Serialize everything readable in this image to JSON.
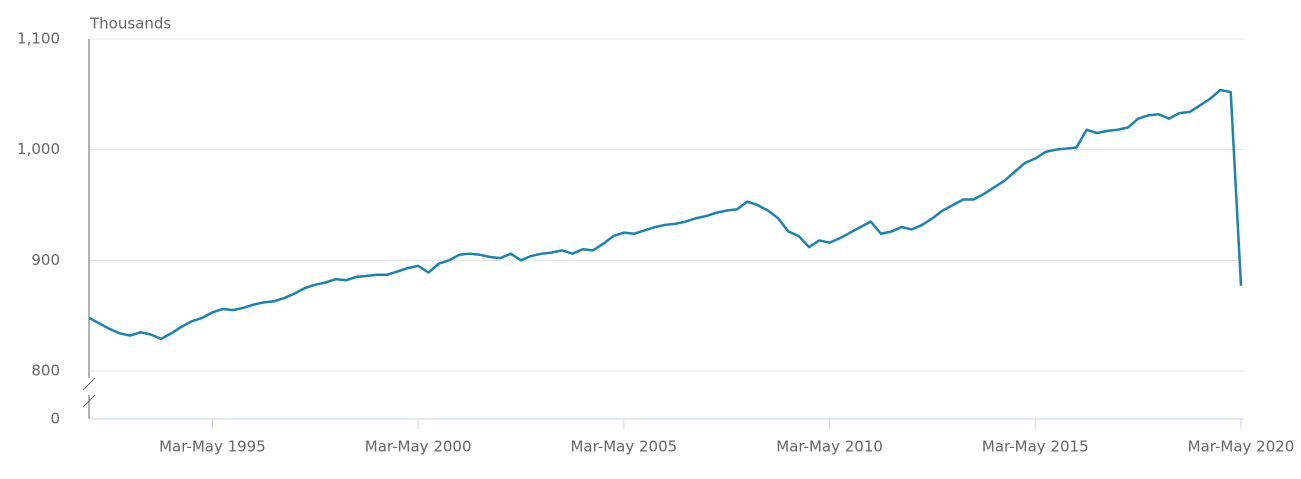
{
  "chart_data": {
    "type": "line",
    "y_unit_label": "Thousands",
    "categories": [
      null,
      null,
      null,
      null,
      null,
      null,
      null,
      null,
      null,
      null,
      null,
      null,
      "Mar-May 1995",
      null,
      null,
      null,
      null,
      null,
      null,
      null,
      null,
      null,
      null,
      null,
      null,
      null,
      null,
      null,
      null,
      null,
      null,
      null,
      "Mar-May 2000",
      null,
      null,
      null,
      null,
      null,
      null,
      null,
      null,
      null,
      null,
      null,
      null,
      null,
      null,
      null,
      null,
      null,
      null,
      null,
      "Mar-May 2005",
      null,
      null,
      null,
      null,
      null,
      null,
      null,
      null,
      null,
      null,
      null,
      null,
      null,
      null,
      null,
      null,
      null,
      null,
      null,
      "Mar-May 2010",
      null,
      null,
      null,
      null,
      null,
      null,
      null,
      null,
      null,
      null,
      null,
      null,
      null,
      null,
      null,
      null,
      null,
      null,
      null,
      "Mar-May 2015",
      null,
      null,
      null,
      null,
      null,
      null,
      null,
      null,
      null,
      null,
      null,
      null,
      null,
      null,
      null,
      null,
      null,
      null,
      null,
      "Mar-May 2020"
    ],
    "values": [
      848,
      843,
      838,
      834,
      832,
      835,
      833,
      829,
      834,
      840,
      845,
      848,
      853,
      856,
      855,
      857,
      860,
      862,
      863,
      866,
      870,
      875,
      878,
      880,
      883,
      882,
      885,
      886,
      887,
      887,
      890,
      893,
      895,
      889,
      897,
      900,
      905,
      906,
      905,
      903,
      902,
      906,
      900,
      904,
      906,
      907,
      909,
      906,
      910,
      909,
      915,
      922,
      925,
      924,
      927,
      930,
      932,
      933,
      935,
      938,
      940,
      943,
      945,
      946,
      953,
      950,
      945,
      938,
      926,
      922,
      912,
      918,
      916,
      920,
      925,
      930,
      935,
      924,
      926,
      930,
      928,
      932,
      938,
      945,
      950,
      955,
      955,
      960,
      966,
      972,
      980,
      988,
      992,
      998,
      1000,
      1001,
      1002,
      1018,
      1015,
      1017,
      1018,
      1020,
      1028,
      1031,
      1032,
      1028,
      1033,
      1034,
      1040,
      1046,
      1054,
      1052,
      877
    ],
    "color": "#1f82a8",
    "ylim": [
      800,
      1100
    ],
    "yticks": [
      0,
      800,
      900,
      {
        "value": 1000,
        "label": "1,000"
      },
      {
        "value": 1100,
        "label": "1,100"
      }
    ],
    "axis_break": true,
    "grid": true
  }
}
